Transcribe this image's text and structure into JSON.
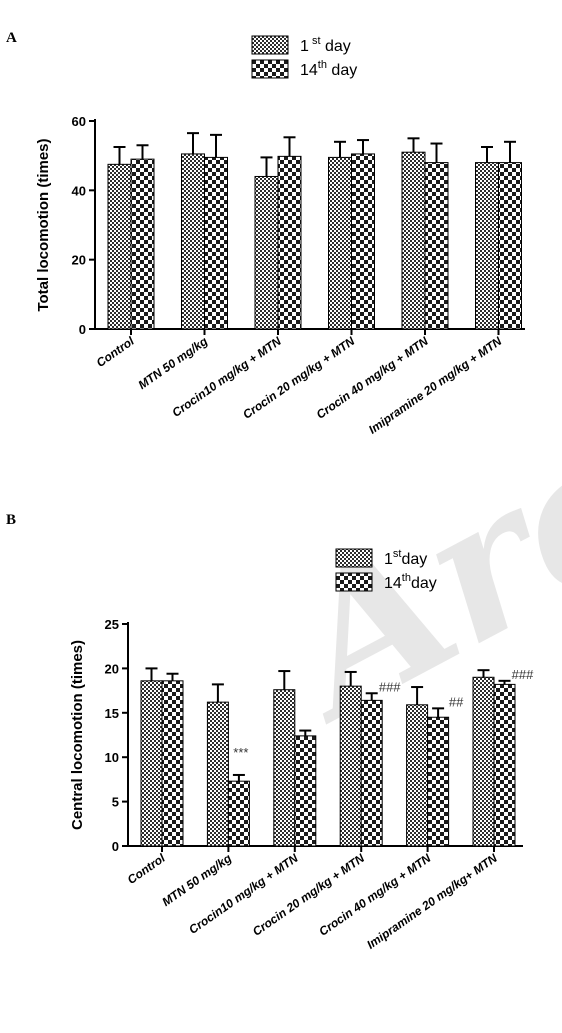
{
  "panels": [
    {
      "letter": "A"
    },
    {
      "letter": "B"
    }
  ],
  "watermark": "Archi",
  "colors": {
    "bar_fill": "#2d2d2d",
    "bar_pattern_light": "#ffffff",
    "axis": "#000000",
    "annotation": "#333333"
  },
  "chart_data": [
    {
      "type": "bar",
      "categories": [
        "Control",
        "MTN 50 mg/kg",
        "Crocin10 mg/kg + MTN",
        "Crocin 20 mg/kg + MTN",
        "Crocin 40 mg/kg + MTN",
        "Imipramine 20 mg/kg + MTN"
      ],
      "ylabel": "Total locomotion (times)",
      "ylim": [
        0,
        60
      ],
      "yticks": [
        0,
        20,
        40,
        60
      ],
      "legend": {
        "position": "top-center",
        "entries": [
          {
            "base": "1",
            "sup": " st",
            "suffix": " day"
          },
          {
            "base": "14",
            "sup": "th",
            "suffix": " day"
          }
        ]
      },
      "series": [
        {
          "name": "1st day",
          "pattern": "fine",
          "values": [
            47.5,
            50.5,
            44,
            49.5,
            51,
            48
          ],
          "errors": [
            5,
            6,
            5.5,
            4.5,
            4,
            4.5
          ]
        },
        {
          "name": "14th day",
          "pattern": "checker",
          "values": [
            49,
            49.5,
            49.8,
            50.5,
            48,
            48
          ],
          "errors": [
            4,
            6.5,
            5.5,
            4,
            5.5,
            6
          ]
        }
      ],
      "annotations": []
    },
    {
      "type": "bar",
      "categories": [
        "Control",
        "MTN 50 mg/kg",
        "Crocin10 mg/kg + MTN",
        "Crocin 20 mg/kg + MTN",
        "Crocin 40 mg/kg + MTN",
        "Imipramine 20 mg/kg+ MTN"
      ],
      "ylabel": "Central locomotion (times)",
      "ylim": [
        0,
        25
      ],
      "yticks": [
        0,
        5,
        10,
        15,
        20,
        25
      ],
      "legend": {
        "position": "top-center",
        "entries": [
          {
            "base": "1",
            "sup": "st",
            "suffix": "day"
          },
          {
            "base": "14",
            "sup": "th",
            "suffix": "day"
          }
        ]
      },
      "series": [
        {
          "name": "1stday",
          "pattern": "fine",
          "values": [
            18.6,
            16.2,
            17.6,
            18,
            15.9,
            19
          ],
          "errors": [
            1.4,
            2,
            2.1,
            1.6,
            2,
            0.8
          ]
        },
        {
          "name": "14thday",
          "pattern": "checker",
          "values": [
            18.6,
            7.3,
            12.4,
            16.4,
            14.5,
            18.2
          ],
          "errors": [
            0.8,
            0.7,
            0.6,
            0.8,
            1,
            0.4
          ]
        }
      ],
      "annotations": [
        {
          "category": 1,
          "series": 1,
          "text": "***"
        },
        {
          "category": 3,
          "series": 1,
          "text": "###"
        },
        {
          "category": 4,
          "series": 1,
          "text": "##"
        },
        {
          "category": 5,
          "series": 1,
          "text": "###"
        }
      ]
    }
  ]
}
